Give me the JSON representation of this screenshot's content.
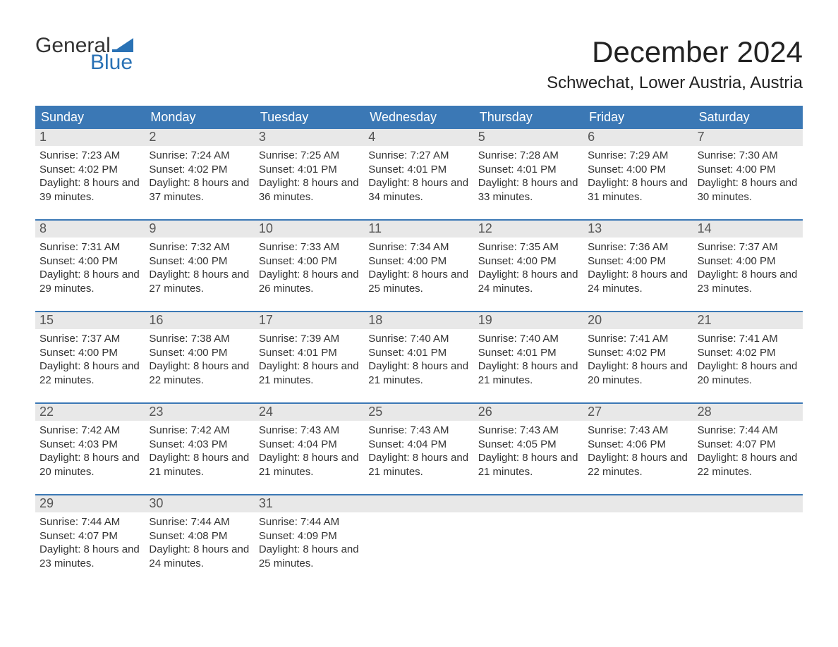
{
  "logo": {
    "word1": "General",
    "word2": "Blue",
    "word2_color": "#2a72b5",
    "icon_color": "#2a72b5"
  },
  "title": "December 2024",
  "location": "Schwechat, Lower Austria, Austria",
  "colors": {
    "header_bg": "#3b78b5",
    "header_text": "#ffffff",
    "daynum_bg": "#e8e8e8",
    "daynum_text": "#555555",
    "body_text": "#333333",
    "week_divider": "#3b78b5",
    "background": "#ffffff"
  },
  "fonts": {
    "title_pt": 42,
    "location_pt": 24,
    "weekday_pt": 18,
    "daynum_pt": 18,
    "cell_pt": 15,
    "logo_pt": 30
  },
  "weekdays": [
    "Sunday",
    "Monday",
    "Tuesday",
    "Wednesday",
    "Thursday",
    "Friday",
    "Saturday"
  ],
  "weeks": [
    [
      {
        "day": "1",
        "sunrise": "7:23 AM",
        "sunset": "4:02 PM",
        "daylight": "8 hours and 39 minutes."
      },
      {
        "day": "2",
        "sunrise": "7:24 AM",
        "sunset": "4:02 PM",
        "daylight": "8 hours and 37 minutes."
      },
      {
        "day": "3",
        "sunrise": "7:25 AM",
        "sunset": "4:01 PM",
        "daylight": "8 hours and 36 minutes."
      },
      {
        "day": "4",
        "sunrise": "7:27 AM",
        "sunset": "4:01 PM",
        "daylight": "8 hours and 34 minutes."
      },
      {
        "day": "5",
        "sunrise": "7:28 AM",
        "sunset": "4:01 PM",
        "daylight": "8 hours and 33 minutes."
      },
      {
        "day": "6",
        "sunrise": "7:29 AM",
        "sunset": "4:00 PM",
        "daylight": "8 hours and 31 minutes."
      },
      {
        "day": "7",
        "sunrise": "7:30 AM",
        "sunset": "4:00 PM",
        "daylight": "8 hours and 30 minutes."
      }
    ],
    [
      {
        "day": "8",
        "sunrise": "7:31 AM",
        "sunset": "4:00 PM",
        "daylight": "8 hours and 29 minutes."
      },
      {
        "day": "9",
        "sunrise": "7:32 AM",
        "sunset": "4:00 PM",
        "daylight": "8 hours and 27 minutes."
      },
      {
        "day": "10",
        "sunrise": "7:33 AM",
        "sunset": "4:00 PM",
        "daylight": "8 hours and 26 minutes."
      },
      {
        "day": "11",
        "sunrise": "7:34 AM",
        "sunset": "4:00 PM",
        "daylight": "8 hours and 25 minutes."
      },
      {
        "day": "12",
        "sunrise": "7:35 AM",
        "sunset": "4:00 PM",
        "daylight": "8 hours and 24 minutes."
      },
      {
        "day": "13",
        "sunrise": "7:36 AM",
        "sunset": "4:00 PM",
        "daylight": "8 hours and 24 minutes."
      },
      {
        "day": "14",
        "sunrise": "7:37 AM",
        "sunset": "4:00 PM",
        "daylight": "8 hours and 23 minutes."
      }
    ],
    [
      {
        "day": "15",
        "sunrise": "7:37 AM",
        "sunset": "4:00 PM",
        "daylight": "8 hours and 22 minutes."
      },
      {
        "day": "16",
        "sunrise": "7:38 AM",
        "sunset": "4:00 PM",
        "daylight": "8 hours and 22 minutes."
      },
      {
        "day": "17",
        "sunrise": "7:39 AM",
        "sunset": "4:01 PM",
        "daylight": "8 hours and 21 minutes."
      },
      {
        "day": "18",
        "sunrise": "7:40 AM",
        "sunset": "4:01 PM",
        "daylight": "8 hours and 21 minutes."
      },
      {
        "day": "19",
        "sunrise": "7:40 AM",
        "sunset": "4:01 PM",
        "daylight": "8 hours and 21 minutes."
      },
      {
        "day": "20",
        "sunrise": "7:41 AM",
        "sunset": "4:02 PM",
        "daylight": "8 hours and 20 minutes."
      },
      {
        "day": "21",
        "sunrise": "7:41 AM",
        "sunset": "4:02 PM",
        "daylight": "8 hours and 20 minutes."
      }
    ],
    [
      {
        "day": "22",
        "sunrise": "7:42 AM",
        "sunset": "4:03 PM",
        "daylight": "8 hours and 20 minutes."
      },
      {
        "day": "23",
        "sunrise": "7:42 AM",
        "sunset": "4:03 PM",
        "daylight": "8 hours and 21 minutes."
      },
      {
        "day": "24",
        "sunrise": "7:43 AM",
        "sunset": "4:04 PM",
        "daylight": "8 hours and 21 minutes."
      },
      {
        "day": "25",
        "sunrise": "7:43 AM",
        "sunset": "4:04 PM",
        "daylight": "8 hours and 21 minutes."
      },
      {
        "day": "26",
        "sunrise": "7:43 AM",
        "sunset": "4:05 PM",
        "daylight": "8 hours and 21 minutes."
      },
      {
        "day": "27",
        "sunrise": "7:43 AM",
        "sunset": "4:06 PM",
        "daylight": "8 hours and 22 minutes."
      },
      {
        "day": "28",
        "sunrise": "7:44 AM",
        "sunset": "4:07 PM",
        "daylight": "8 hours and 22 minutes."
      }
    ],
    [
      {
        "day": "29",
        "sunrise": "7:44 AM",
        "sunset": "4:07 PM",
        "daylight": "8 hours and 23 minutes."
      },
      {
        "day": "30",
        "sunrise": "7:44 AM",
        "sunset": "4:08 PM",
        "daylight": "8 hours and 24 minutes."
      },
      {
        "day": "31",
        "sunrise": "7:44 AM",
        "sunset": "4:09 PM",
        "daylight": "8 hours and 25 minutes."
      },
      null,
      null,
      null,
      null
    ]
  ],
  "labels": {
    "sunrise": "Sunrise: ",
    "sunset": "Sunset: ",
    "daylight": "Daylight: "
  }
}
